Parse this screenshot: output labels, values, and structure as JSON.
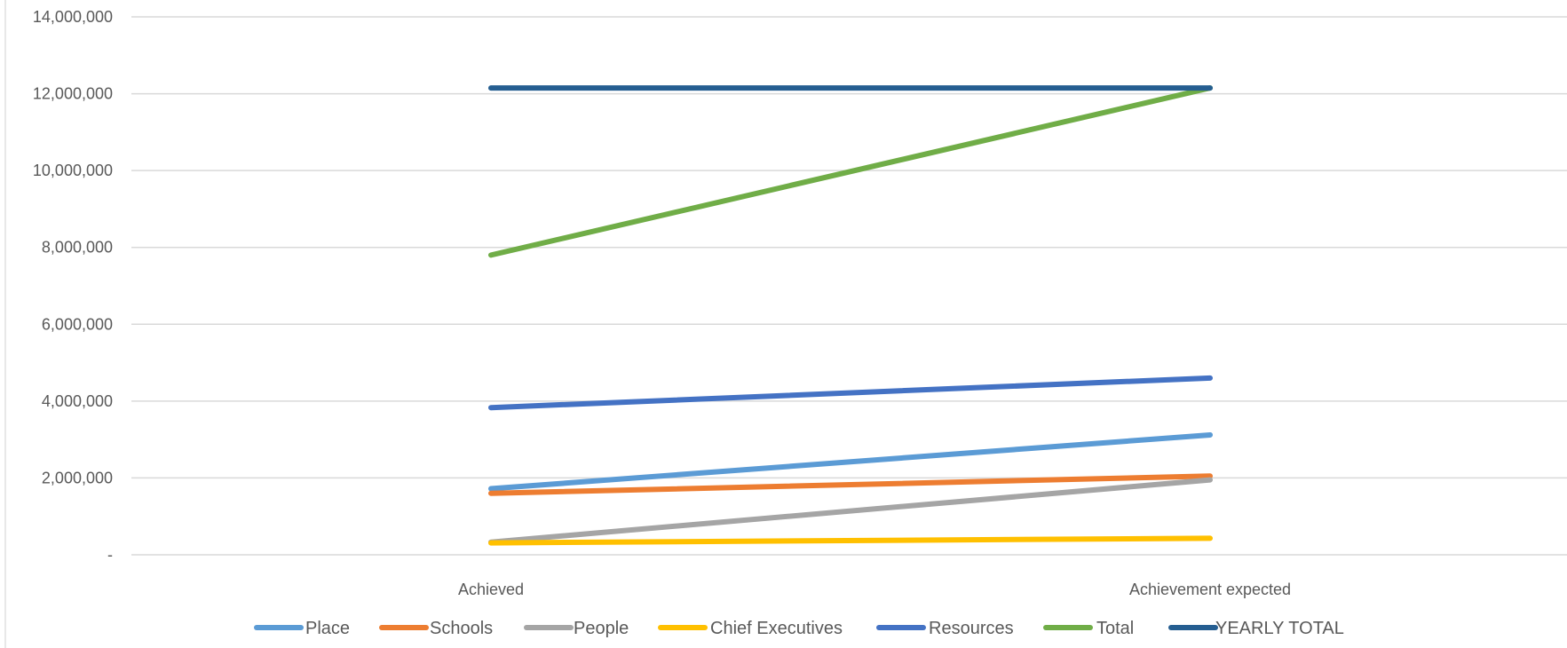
{
  "chart_data": {
    "type": "line",
    "title": "",
    "xlabel": "",
    "ylabel": "",
    "categories": [
      "Achieved",
      "Achievement expected"
    ],
    "ylim": [
      0,
      14000000
    ],
    "yticks": [
      0,
      2000000,
      4000000,
      6000000,
      8000000,
      10000000,
      12000000,
      14000000
    ],
    "ytick_labels": [
      "-",
      "2,000,000",
      "4,000,000",
      "6,000,000",
      "8,000,000",
      "10,000,000",
      "12,000,000",
      "14,000,000"
    ],
    "grid": true,
    "legend_position": "bottom",
    "series": [
      {
        "name": "Place",
        "color": "#5B9BD5",
        "values": [
          1720000,
          3120000
        ]
      },
      {
        "name": "Schools",
        "color": "#ED7D31",
        "values": [
          1600000,
          2050000
        ]
      },
      {
        "name": "People",
        "color": "#A5A5A5",
        "values": [
          330000,
          1950000
        ]
      },
      {
        "name": "Chief Executives",
        "color": "#FFC000",
        "values": [
          310000,
          430000
        ]
      },
      {
        "name": "Resources",
        "color": "#4472C4",
        "values": [
          3830000,
          4600000
        ]
      },
      {
        "name": "Total",
        "color": "#70AD47",
        "values": [
          7800000,
          12150000
        ]
      },
      {
        "name": "YEARLY TOTAL",
        "color": "#255E91",
        "values": [
          12150000,
          12150000
        ]
      }
    ]
  }
}
